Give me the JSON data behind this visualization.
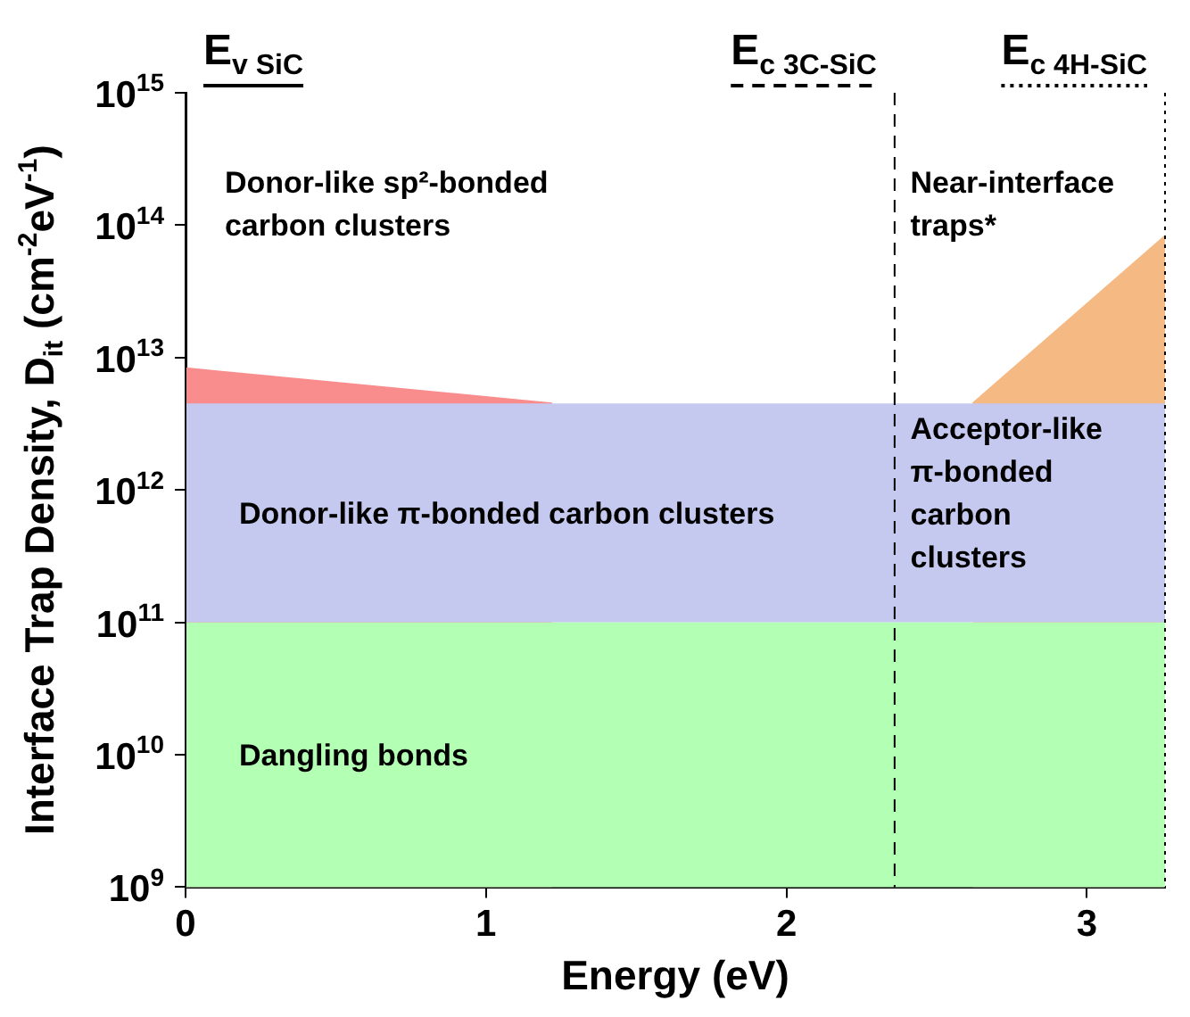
{
  "chart_data": {
    "type": "area",
    "xlabel": "Energy (eV)",
    "ylabel": "Interface Trap Density, D$_{it}$ (cm$^{-2}$eV$^{-1}$)",
    "log": "y",
    "xlim": [
      0,
      3.26
    ],
    "xticks": [
      0,
      1,
      2,
      3
    ],
    "ylim": [
      1000000000.0,
      1000000000000000.0
    ],
    "yticks": [
      {
        "value": 1000000000.0,
        "label": "10$^{9}$"
      },
      {
        "value": 10000000000.0,
        "label": "10$^{10}$"
      },
      {
        "value": 100000000000.0,
        "label": "10$^{11}$"
      },
      {
        "value": 1000000000000.0,
        "label": "10$^{12}$"
      },
      {
        "value": 10000000000000.0,
        "label": "10$^{13}$"
      },
      {
        "value": 100000000000000.0,
        "label": "10$^{14}$"
      },
      {
        "value": 1000000000000000.0,
        "label": "10$^{15}$"
      }
    ],
    "series": [
      {
        "type": "area",
        "color": "#f98c8c",
        "x": [
          0,
          1.22
        ],
        "values": [
          8300000000000.0,
          4500000000000.0
        ]
      },
      {
        "type": "area",
        "color": "#f5b984",
        "x": [
          2.62,
          3.26
        ],
        "values": [
          4500000000000.0,
          83000000000000.0
        ]
      }
    ],
    "bands": [
      {
        "axis": "y",
        "from": 1000000000.0,
        "to": 100000000000.0,
        "label": "Dangling bonds",
        "color": "#b3ffb3"
      },
      {
        "axis": "y",
        "from": 100000000000.0,
        "to": 4500000000000.0,
        "label": "Donor-like π-bonded carbon clusters",
        "color": "#c5c9f0"
      }
    ],
    "ref_lines": [
      {
        "axis": "x",
        "value": 0,
        "label": "E$_{v SiC}$",
        "line_style": "solid"
      },
      {
        "axis": "x",
        "value": 2.36,
        "label": "E$_{c 3C-SiC}$",
        "line_style": "dashed"
      },
      {
        "axis": "x",
        "value": 3.26,
        "label": "E$_{c 4H-SiC}$",
        "line_style": "dotted"
      }
    ],
    "annotations": [
      "Donor-like sp²-bonded\ncarbon clusters",
      "Near-interface\ntraps*",
      "Acceptor-like\nπ-bonded\ncarbon\nclusters"
    ]
  }
}
